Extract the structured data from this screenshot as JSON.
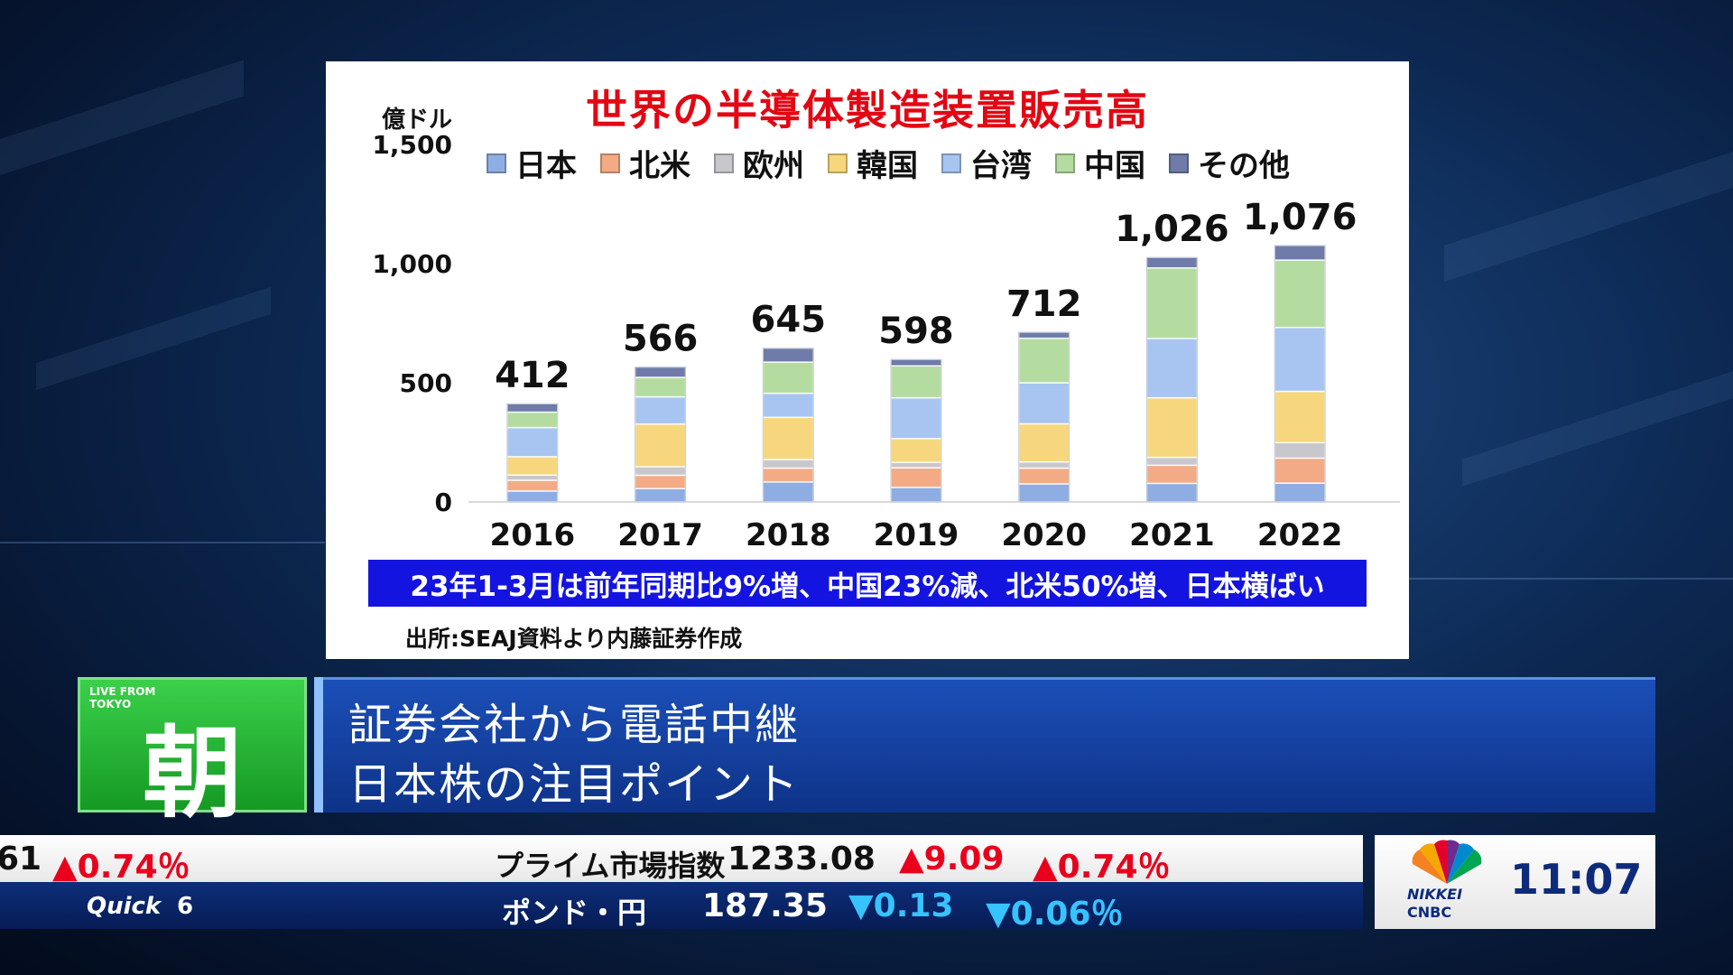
{
  "chart_data": {
    "type": "bar",
    "stacked": true,
    "title": "世界の半導体製造装置販売高",
    "y_unit": "億ドル",
    "ylim": [
      0,
      1500
    ],
    "yticks": [
      0,
      500,
      1000,
      1500
    ],
    "ytick_labels": [
      "0",
      "500",
      "1,000",
      "1,500"
    ],
    "categories": [
      "2016",
      "2017",
      "2018",
      "2019",
      "2020",
      "2021",
      "2022"
    ],
    "totals": [
      412,
      566,
      645,
      598,
      712,
      1026,
      1076
    ],
    "total_labels": [
      "412",
      "566",
      "645",
      "598",
      "712",
      "1,026",
      "1,076"
    ],
    "series": [
      {
        "name": "日本",
        "color": "#8eaee3",
        "values": [
          46,
          56,
          84,
          61,
          76,
          78,
          79
        ]
      },
      {
        "name": "北米",
        "color": "#f3ab85",
        "values": [
          45,
          56,
          58,
          82,
          66,
          76,
          105
        ]
      },
      {
        "name": "欧州",
        "color": "#c8c8cc",
        "values": [
          22,
          36,
          36,
          23,
          26,
          33,
          65
        ]
      },
      {
        "name": "韓国",
        "color": "#f7d77e",
        "values": [
          77,
          179,
          177,
          100,
          160,
          250,
          215
        ]
      },
      {
        "name": "台湾",
        "color": "#a7c5f0",
        "values": [
          122,
          114,
          101,
          171,
          172,
          249,
          268
        ]
      },
      {
        "name": "中国",
        "color": "#b5dca0",
        "values": [
          65,
          82,
          131,
          134,
          187,
          296,
          283
        ]
      },
      {
        "name": "その他",
        "color": "#6f7ba8",
        "values": [
          35,
          43,
          58,
          27,
          25,
          44,
          61
        ]
      }
    ],
    "grid": false,
    "legend": "top"
  },
  "chart": {
    "note": "23年1-3月は前年同期比9%増、中国23%減、北米50%増、日本横ばい",
    "source": "出所:SEAJ資料より内藤証券作成"
  },
  "lower_third": {
    "badge_live": "LIVE FROM TOKYO",
    "badge_kanji": "朝",
    "headline_1": "証券会社から電話中継",
    "headline_2": "日本株の注目ポイント"
  },
  "ticker": {
    "top_prev_change_fragment": "61",
    "top_prev_change_pct": "▲0.74％",
    "top_name": "プライム市場指数",
    "top_value": "1233.08",
    "top_change": "▲9.09",
    "top_change_pct": "▲0.74％",
    "bottom_brand": "Quick",
    "bottom_brand_mark": "6",
    "bottom_name": "ポンド・円",
    "bottom_value": "187.35",
    "bottom_change": "▼0.13",
    "bottom_change_pct": "▼0.06％"
  },
  "logo": {
    "nikkei": "NIKKEI",
    "cnbc": "CNBC",
    "time": "11:07"
  }
}
